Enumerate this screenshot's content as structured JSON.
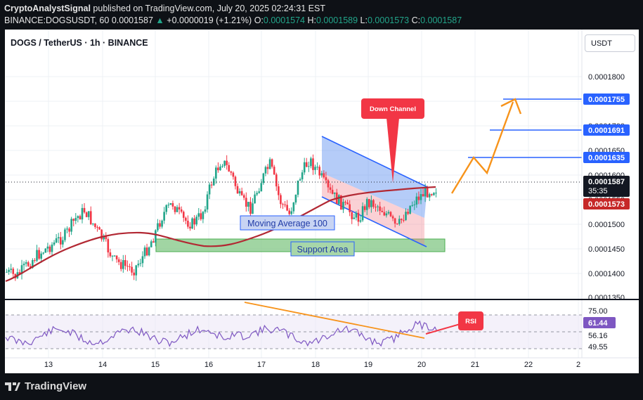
{
  "header": {
    "author": "CryptoAnalystSignal",
    "published": "published on TradingView.com, July 20, 2025 02:24:31 EST",
    "ticker": "BINANCE:DOGSUSDT, 60",
    "last": "0.0001587",
    "change_arrow": "▲",
    "change": "+0.0000019 (+1.21%)",
    "o_label": "O:",
    "o": "0.0001574",
    "h_label": "H:",
    "h": "0.0001589",
    "l_label": "L:",
    "l": "0.0001573",
    "c_label": "C:",
    "c": "0.0001587"
  },
  "chart_title": "DOGS / TetherUS · 1h · BINANCE",
  "currency_button": "USDT",
  "price_axis": {
    "ticks": [
      "0.0001800",
      "0.0001750",
      "0.0001700",
      "0.0001650",
      "0.0001600",
      "0.0001550",
      "0.0001500",
      "0.0001450",
      "0.0001400",
      "0.0001350"
    ]
  },
  "price_badges": {
    "t3": "0.0001755",
    "t2": "0.0001691",
    "t1": "0.0001635",
    "last": "0.0001587",
    "countdown": "35:35",
    "low": "0.0001573"
  },
  "time_axis": {
    "labels": [
      "13",
      "14",
      "15",
      "16",
      "17",
      "18",
      "19",
      "20",
      "21",
      "22",
      "2"
    ]
  },
  "annotations": {
    "down_channel": "Down Channel",
    "moving_average": "Moving Average 100",
    "support": "Support Area",
    "rsi": "RSI"
  },
  "rsi_axis": {
    "levels": [
      "75.00",
      "56.16",
      "49.55"
    ],
    "current": "61.44"
  },
  "colors": {
    "up": "#22a58a",
    "down": "#f23645",
    "ma": "#b22833",
    "target": "#2962ff",
    "arrow": "#f7931a",
    "channel": "#5b8def",
    "support": "#4caf50",
    "rsi": "#7e57c2"
  },
  "footer": {
    "brand": "TradingView"
  },
  "chart_data": {
    "type": "candlestick",
    "symbol": "DOGS / TetherUS",
    "interval": "1h",
    "x_labels": [
      "13",
      "14",
      "15",
      "16",
      "17",
      "18",
      "19",
      "20",
      "21",
      "22"
    ],
    "ylim": [
      0.000135,
      0.000183
    ],
    "close_path": [
      0.0001405,
      0.0001395,
      0.0001418,
      0.000144,
      0.0001455,
      0.000147,
      0.0001485,
      0.000152,
      0.000154,
      0.0001505,
      0.000147,
      0.000143,
      0.000142,
      0.000141,
      0.000144,
      0.000148,
      0.000153,
      0.0001555,
      0.000152,
      0.000151,
      0.000153,
      0.00016,
      0.000165,
      0.000162,
      0.000156,
      0.0001545,
      0.00016,
      0.000164,
      0.000156,
      0.000153,
      0.000161,
      0.000165,
      0.000162,
      0.000158,
      0.000156,
      0.000154,
      0.000152,
      0.000156,
      0.000155,
      0.000153,
      0.00015,
      0.000154,
      0.0001565,
      0.000158,
      0.0001587
    ],
    "moving_average_100": [
      0.0001385,
      0.000142,
      0.000145,
      0.000147,
      0.0001478,
      0.0001475,
      0.000146,
      0.0001455,
      0.0001458,
      0.0001462,
      0.000148,
      0.000151,
      0.000153,
      0.0001545,
      0.000156,
      0.0001575,
      0.0001585
    ],
    "support_area": [
      0.000146,
      0.000147
    ],
    "targets": [
      0.0001635,
      0.0001691,
      0.0001755
    ],
    "last": 0.0001587,
    "low": 0.0001573,
    "rsi": {
      "levels": [
        75.0,
        56.16,
        49.55
      ],
      "current": 61.44
    }
  }
}
